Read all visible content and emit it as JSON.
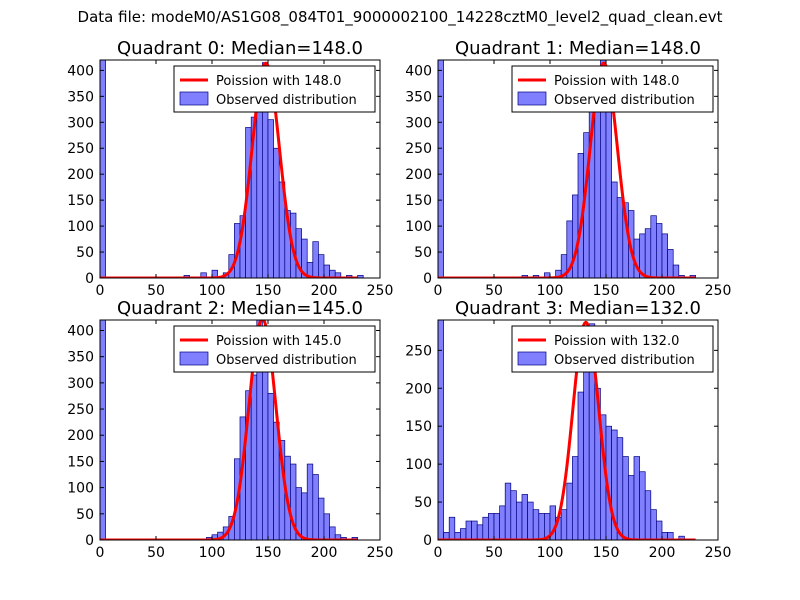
{
  "suptitle": "Data file: modeM0/AS1G08_084T01_9000002100_14228cztM0_level2_quad_clean.evt",
  "colors": {
    "poisson": "#ff0000",
    "bar_fill": "#8080ff",
    "bar_edge": "#00007f",
    "frame": "#000000"
  },
  "chart_data": [
    {
      "type": "bar",
      "title": "Quadrant 0: Median=148.0",
      "xlim": [
        0,
        250
      ],
      "ylim": [
        0,
        420
      ],
      "xticks": [
        0,
        50,
        100,
        150,
        200,
        250
      ],
      "yticks": [
        0,
        50,
        100,
        150,
        200,
        250,
        300,
        350,
        400
      ],
      "legend": {
        "placement": "top-right",
        "poisson_label": "Poission with 148.0",
        "observed_label": "Observed distribution"
      },
      "poisson_mean": 148,
      "poisson_peak": 414,
      "bin_width": 5,
      "bins": [
        [
          0,
          5,
          500
        ],
        [
          75,
          80,
          5
        ],
        [
          90,
          95,
          10
        ],
        [
          100,
          105,
          15
        ],
        [
          110,
          115,
          10
        ],
        [
          115,
          120,
          45
        ],
        [
          120,
          125,
          105
        ],
        [
          125,
          130,
          120
        ],
        [
          130,
          135,
          290
        ],
        [
          135,
          140,
          310
        ],
        [
          140,
          145,
          365
        ],
        [
          145,
          150,
          415
        ],
        [
          150,
          155,
          305
        ],
        [
          155,
          160,
          250
        ],
        [
          160,
          165,
          185
        ],
        [
          165,
          170,
          130
        ],
        [
          170,
          175,
          125
        ],
        [
          175,
          180,
          95
        ],
        [
          180,
          185,
          75
        ],
        [
          185,
          190,
          30
        ],
        [
          190,
          195,
          70
        ],
        [
          195,
          200,
          45
        ],
        [
          200,
          205,
          25
        ],
        [
          205,
          210,
          15
        ],
        [
          210,
          215,
          10
        ],
        [
          220,
          225,
          5
        ],
        [
          230,
          235,
          5
        ]
      ]
    },
    {
      "type": "bar",
      "title": "Quadrant 1: Median=148.0",
      "xlim": [
        0,
        250
      ],
      "ylim": [
        0,
        420
      ],
      "xticks": [
        0,
        50,
        100,
        150,
        200,
        250
      ],
      "yticks": [
        0,
        50,
        100,
        150,
        200,
        250,
        300,
        350,
        400
      ],
      "legend": {
        "placement": "top-right",
        "poisson_label": "Poission with 148.0",
        "observed_label": "Observed distribution"
      },
      "poisson_mean": 148,
      "poisson_peak": 414,
      "bin_width": 5,
      "bins": [
        [
          0,
          5,
          500
        ],
        [
          75,
          80,
          5
        ],
        [
          85,
          90,
          5
        ],
        [
          95,
          100,
          10
        ],
        [
          105,
          110,
          15
        ],
        [
          110,
          115,
          45
        ],
        [
          115,
          120,
          110
        ],
        [
          120,
          125,
          160
        ],
        [
          125,
          130,
          240
        ],
        [
          130,
          135,
          280
        ],
        [
          135,
          140,
          355
        ],
        [
          140,
          145,
          390
        ],
        [
          145,
          150,
          420
        ],
        [
          150,
          155,
          355
        ],
        [
          155,
          160,
          185
        ],
        [
          160,
          165,
          155
        ],
        [
          165,
          170,
          145
        ],
        [
          170,
          175,
          130
        ],
        [
          175,
          180,
          75
        ],
        [
          180,
          185,
          85
        ],
        [
          185,
          190,
          95
        ],
        [
          190,
          195,
          120
        ],
        [
          195,
          200,
          105
        ],
        [
          200,
          205,
          85
        ],
        [
          205,
          210,
          55
        ],
        [
          210,
          215,
          25
        ],
        [
          215,
          220,
          5
        ],
        [
          225,
          230,
          5
        ]
      ]
    },
    {
      "type": "bar",
      "title": "Quadrant 2: Median=145.0",
      "xlim": [
        0,
        250
      ],
      "ylim": [
        0,
        420
      ],
      "xticks": [
        0,
        50,
        100,
        150,
        200,
        250
      ],
      "yticks": [
        0,
        50,
        100,
        150,
        200,
        250,
        300,
        350,
        400
      ],
      "legend": {
        "placement": "top-right",
        "poisson_label": "Poission with 145.0",
        "observed_label": "Observed distribution"
      },
      "poisson_mean": 145,
      "poisson_peak": 422,
      "bin_width": 5,
      "bins": [
        [
          0,
          5,
          500
        ],
        [
          95,
          100,
          5
        ],
        [
          100,
          105,
          10
        ],
        [
          105,
          110,
          15
        ],
        [
          110,
          115,
          25
        ],
        [
          115,
          120,
          45
        ],
        [
          120,
          125,
          155
        ],
        [
          125,
          130,
          235
        ],
        [
          130,
          135,
          285
        ],
        [
          135,
          140,
          315
        ],
        [
          140,
          145,
          420
        ],
        [
          145,
          150,
          330
        ],
        [
          150,
          155,
          280
        ],
        [
          155,
          160,
          225
        ],
        [
          160,
          165,
          190
        ],
        [
          165,
          170,
          160
        ],
        [
          170,
          175,
          145
        ],
        [
          175,
          180,
          100
        ],
        [
          180,
          185,
          90
        ],
        [
          185,
          190,
          145
        ],
        [
          190,
          195,
          125
        ],
        [
          195,
          200,
          80
        ],
        [
          200,
          205,
          50
        ],
        [
          205,
          210,
          25
        ],
        [
          210,
          215,
          10
        ],
        [
          215,
          220,
          5
        ],
        [
          225,
          230,
          5
        ]
      ]
    },
    {
      "type": "bar",
      "title": "Quadrant 3: Median=132.0",
      "xlim": [
        0,
        250
      ],
      "ylim": [
        0,
        290
      ],
      "xticks": [
        0,
        50,
        100,
        150,
        200,
        250
      ],
      "yticks": [
        0,
        50,
        100,
        150,
        200,
        250
      ],
      "legend": {
        "placement": "top-right",
        "poisson_label": "Poission with 132.0",
        "observed_label": "Observed distribution"
      },
      "poisson_mean": 132,
      "poisson_peak": 287,
      "bin_width": 5,
      "bins": [
        [
          0,
          5,
          290
        ],
        [
          5,
          10,
          10
        ],
        [
          10,
          15,
          30
        ],
        [
          15,
          20,
          10
        ],
        [
          20,
          25,
          15
        ],
        [
          25,
          30,
          25
        ],
        [
          30,
          35,
          25
        ],
        [
          35,
          40,
          20
        ],
        [
          40,
          45,
          30
        ],
        [
          45,
          50,
          35
        ],
        [
          50,
          55,
          35
        ],
        [
          55,
          60,
          45
        ],
        [
          60,
          65,
          75
        ],
        [
          65,
          70,
          65
        ],
        [
          70,
          75,
          50
        ],
        [
          75,
          80,
          60
        ],
        [
          80,
          85,
          50
        ],
        [
          85,
          90,
          40
        ],
        [
          90,
          95,
          35
        ],
        [
          95,
          100,
          35
        ],
        [
          100,
          105,
          45
        ],
        [
          105,
          110,
          30
        ],
        [
          110,
          115,
          40
        ],
        [
          115,
          120,
          75
        ],
        [
          120,
          125,
          110
        ],
        [
          125,
          130,
          195
        ],
        [
          130,
          135,
          225
        ],
        [
          135,
          140,
          285
        ],
        [
          140,
          145,
          200
        ],
        [
          145,
          150,
          165
        ],
        [
          150,
          155,
          150
        ],
        [
          155,
          160,
          145
        ],
        [
          160,
          165,
          135
        ],
        [
          165,
          170,
          110
        ],
        [
          170,
          175,
          85
        ],
        [
          175,
          180,
          110
        ],
        [
          180,
          185,
          90
        ],
        [
          185,
          190,
          65
        ],
        [
          190,
          195,
          40
        ],
        [
          195,
          200,
          25
        ],
        [
          200,
          205,
          10
        ],
        [
          205,
          210,
          10
        ],
        [
          215,
          220,
          5
        ]
      ]
    }
  ]
}
